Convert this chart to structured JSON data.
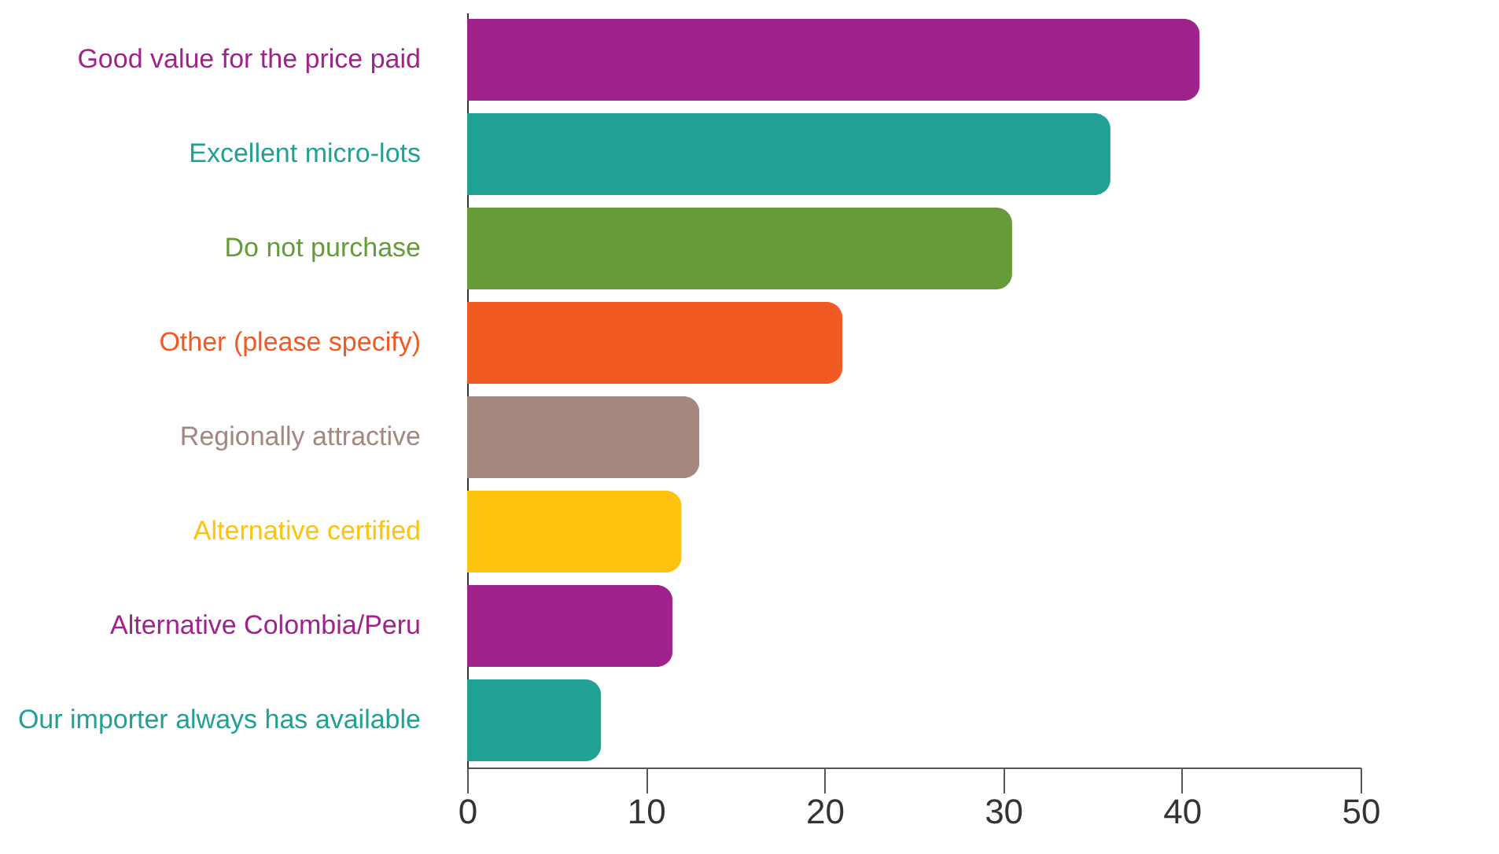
{
  "chart_data": {
    "type": "bar",
    "orientation": "horizontal",
    "categories": [
      "Good value for the price paid",
      "Excellent micro-lots",
      "Do not purchase",
      "Other (please specify)",
      "Regionally attractive",
      "Alternative certified",
      "Alternative Colombia/Peru",
      "Our importer always has available"
    ],
    "values": [
      41,
      36,
      30.5,
      21,
      13,
      12,
      11.5,
      7.5
    ],
    "colors": [
      "#a0228c",
      "#21a194",
      "#669b3a",
      "#f15a22",
      "#a4877e",
      "#fdc30f",
      "#a0228c",
      "#21a194"
    ],
    "xlim": [
      0,
      50
    ],
    "xticks": [
      0,
      10,
      20,
      30,
      40,
      50
    ],
    "grid": false
  }
}
